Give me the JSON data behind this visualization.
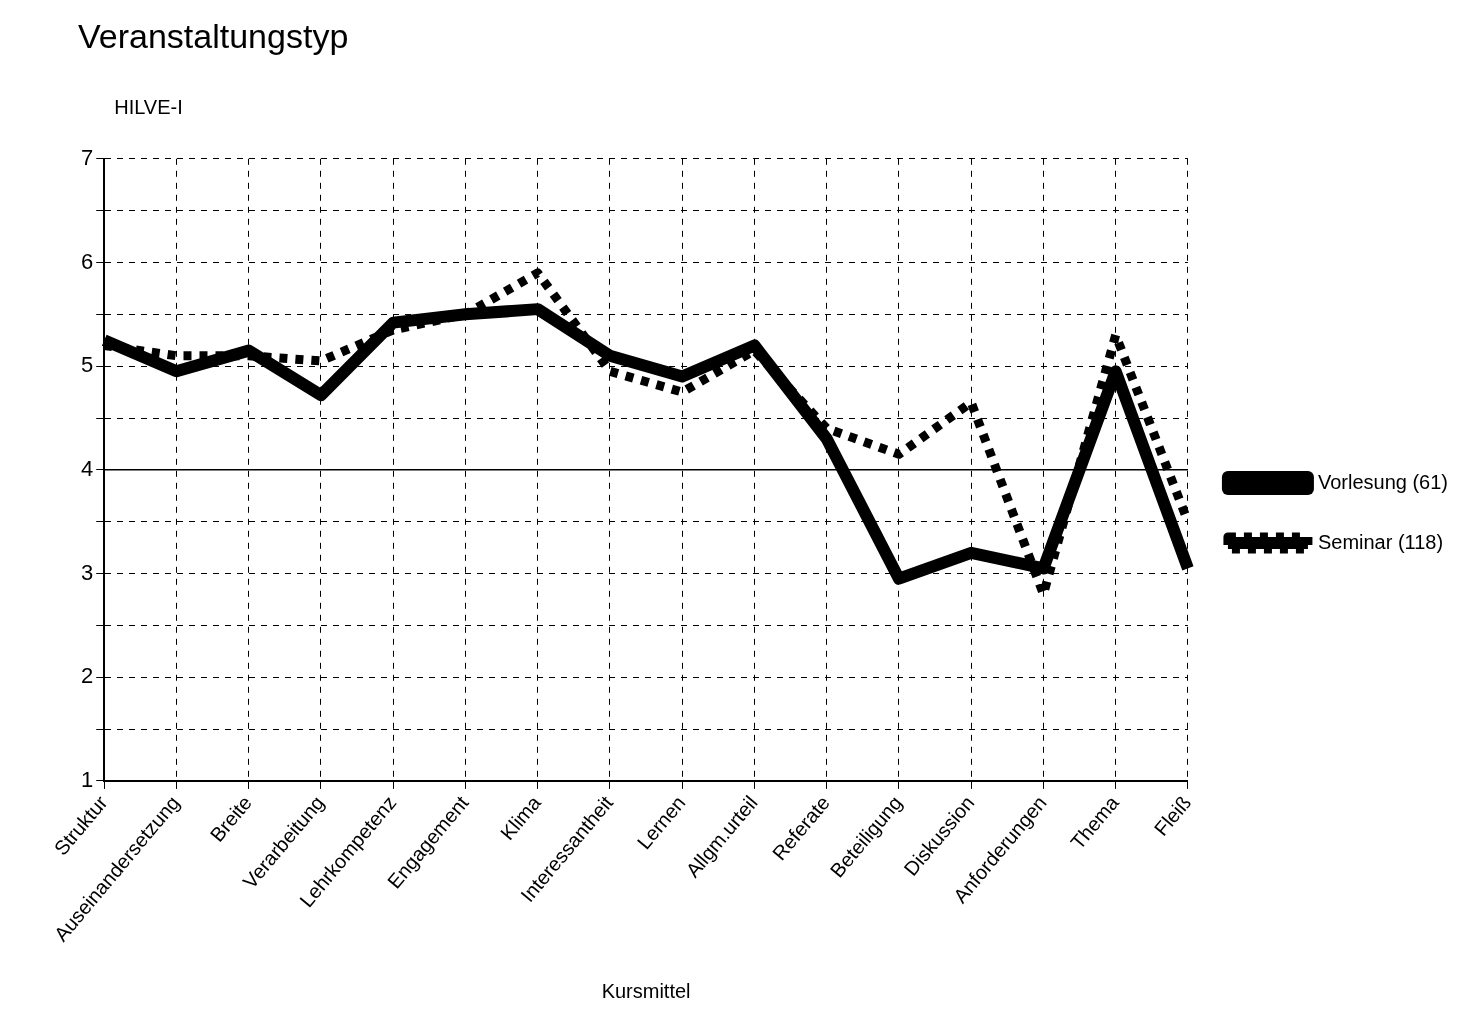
{
  "chart_data": {
    "type": "line",
    "title": "Veranstaltungstyp",
    "ylabel": "HILVE-I",
    "xlabel": "Kursmittel",
    "categories": [
      "Struktur",
      "Auseinandersetzung",
      "Breite",
      "Verarbeitung",
      "Lehrkompetenz",
      "Engagement",
      "Klima",
      "Interessantheit",
      "Lernen",
      "Allgm.urteil",
      "Referate",
      "Beteiligung",
      "Diskussion",
      "Anforderungen",
      "Thema",
      "Fleiß"
    ],
    "series": [
      {
        "name": "Vorlesung (61)",
        "color": "#000000",
        "line_style": "solid",
        "values": [
          5.25,
          4.95,
          5.15,
          4.72,
          5.42,
          5.5,
          5.55,
          5.1,
          4.9,
          5.2,
          4.3,
          2.95,
          3.2,
          3.05,
          4.95,
          3.05
        ]
      },
      {
        "name": "Seminar (118)",
        "color": "#000000",
        "line_style": "dotted",
        "values": [
          5.2,
          5.1,
          5.1,
          5.05,
          5.35,
          5.5,
          5.9,
          4.95,
          4.75,
          5.15,
          4.4,
          4.15,
          4.65,
          2.8,
          5.3,
          3.5
        ]
      }
    ],
    "ylim": [
      1,
      7
    ],
    "yticks": [
      1,
      {
        "value": 1.5,
        "label": null
      },
      2,
      {
        "value": 2.5,
        "label": null
      },
      3,
      {
        "value": 3.5,
        "label": null
      },
      4,
      {
        "value": 4.5,
        "label": null
      },
      5,
      {
        "value": 5.5,
        "label": null
      },
      6,
      {
        "value": 6.5,
        "label": null
      },
      7
    ],
    "ref_lines": [
      {
        "axis": "y",
        "value": 4,
        "color": "#000000",
        "line_style": "solid"
      }
    ],
    "grid": true,
    "legend": "right",
    "marker": "none"
  }
}
